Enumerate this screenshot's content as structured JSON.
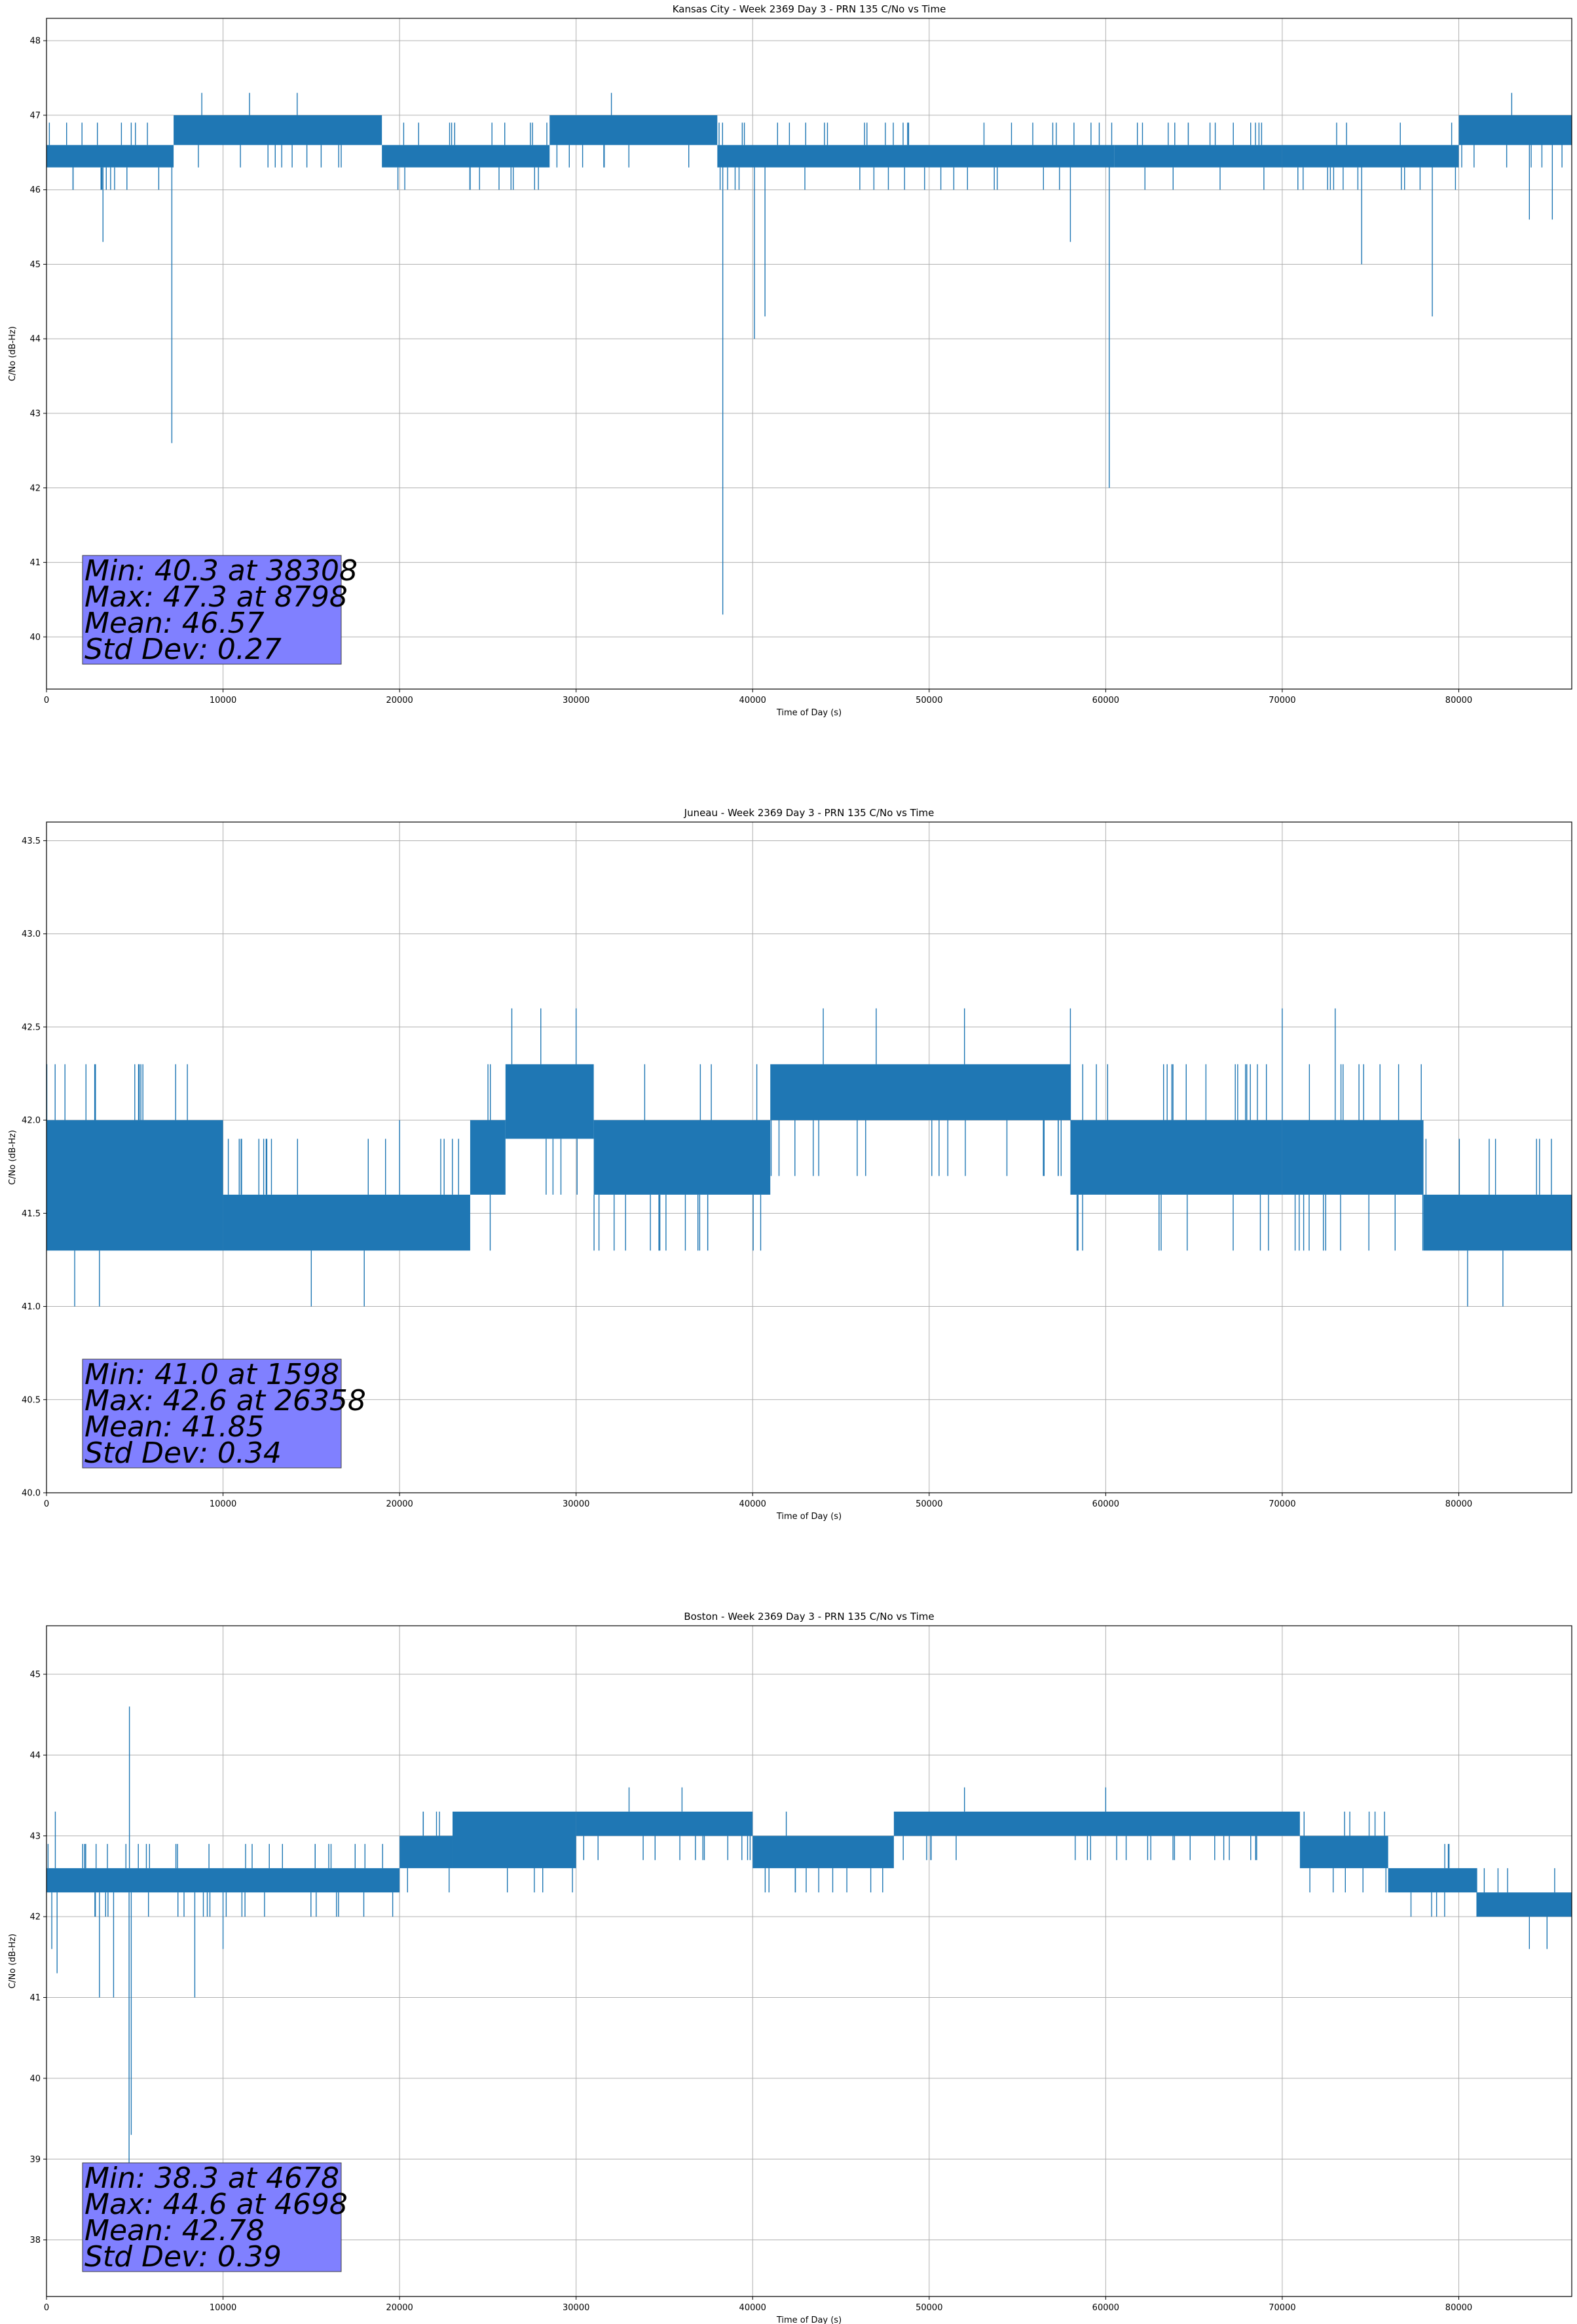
{
  "chart_data": [
    {
      "type": "line",
      "title": "Kansas City - Week 2369 Day 3 - PRN 135 C/No vs Time",
      "xlabel": "Time of Day (s)",
      "ylabel": "C/No (dB-Hz)",
      "xlim": [
        0,
        86400
      ],
      "ylim": [
        39.3,
        48.3
      ],
      "xticks": [
        0,
        10000,
        20000,
        30000,
        40000,
        50000,
        60000,
        70000,
        80000
      ],
      "yticks": [
        40,
        41,
        42,
        43,
        44,
        45,
        46,
        47,
        48
      ],
      "grid": true,
      "stats": [
        "Min: 40.3 at 38308",
        "Max: 47.3 at 8798",
        "Mean: 46.57",
        "Std Dev: 0.27"
      ],
      "bands": [
        {
          "x0": 0,
          "x1": 7200,
          "low": 46.3,
          "high": 46.6
        },
        {
          "x0": 7200,
          "x1": 19000,
          "low": 46.6,
          "high": 47.0
        },
        {
          "x0": 19000,
          "x1": 28500,
          "low": 46.3,
          "high": 46.6
        },
        {
          "x0": 28500,
          "x1": 38000,
          "low": 46.6,
          "high": 47.0
        },
        {
          "x0": 38000,
          "x1": 60500,
          "low": 46.3,
          "high": 46.6
        },
        {
          "x0": 60500,
          "x1": 70000,
          "low": 46.3,
          "high": 46.6
        },
        {
          "x0": 70000,
          "x1": 80000,
          "low": 46.3,
          "high": 46.6
        },
        {
          "x0": 80000,
          "x1": 86400,
          "low": 46.6,
          "high": 47.0
        }
      ],
      "spikes": [
        {
          "x": 1500,
          "y": 46.0
        },
        {
          "x": 3200,
          "y": 45.3
        },
        {
          "x": 7100,
          "y": 42.6
        },
        {
          "x": 8798,
          "y": 47.3
        },
        {
          "x": 11500,
          "y": 47.3
        },
        {
          "x": 14200,
          "y": 47.3
        },
        {
          "x": 24000,
          "y": 46.0
        },
        {
          "x": 32000,
          "y": 47.3
        },
        {
          "x": 38308,
          "y": 40.3
        },
        {
          "x": 40100,
          "y": 44.0
        },
        {
          "x": 40700,
          "y": 44.3
        },
        {
          "x": 58000,
          "y": 45.3
        },
        {
          "x": 60200,
          "y": 42.0
        },
        {
          "x": 74500,
          "y": 45.0
        },
        {
          "x": 78500,
          "y": 44.3
        },
        {
          "x": 83000,
          "y": 47.3
        },
        {
          "x": 84000,
          "y": 45.6
        },
        {
          "x": 85300,
          "y": 45.6
        }
      ],
      "flicker": {
        "lo": 46.0,
        "hi": 47.0
      }
    },
    {
      "type": "line",
      "title": "Juneau - Week 2369 Day 3 - PRN 135 C/No vs Time",
      "xlabel": "Time of Day (s)",
      "ylabel": "C/No (dB-Hz)",
      "xlim": [
        0,
        86400
      ],
      "ylim": [
        40.0,
        43.6
      ],
      "xticks": [
        0,
        10000,
        20000,
        30000,
        40000,
        50000,
        60000,
        70000,
        80000
      ],
      "yticks": [
        40.0,
        40.5,
        41.0,
        41.5,
        42.0,
        42.5,
        43.0,
        43.5
      ],
      "grid": true,
      "stats": [
        "Min: 41.0 at 1598",
        "Max: 42.6 at 26358",
        "Mean: 41.85",
        "Std Dev: 0.34"
      ],
      "bands": [
        {
          "x0": 0,
          "x1": 10000,
          "low": 41.3,
          "high": 42.0
        },
        {
          "x0": 10000,
          "x1": 24000,
          "low": 41.3,
          "high": 41.6
        },
        {
          "x0": 24000,
          "x1": 26000,
          "low": 41.6,
          "high": 42.0
        },
        {
          "x0": 26000,
          "x1": 31000,
          "low": 41.9,
          "high": 42.3
        },
        {
          "x0": 31000,
          "x1": 41000,
          "low": 41.6,
          "high": 42.0
        },
        {
          "x0": 41000,
          "x1": 58000,
          "low": 42.0,
          "high": 42.3
        },
        {
          "x0": 58000,
          "x1": 70000,
          "low": 41.6,
          "high": 42.0
        },
        {
          "x0": 70000,
          "x1": 78000,
          "low": 41.6,
          "high": 42.0
        },
        {
          "x0": 78000,
          "x1": 86400,
          "low": 41.3,
          "high": 41.6
        }
      ],
      "spikes": [
        {
          "x": 1598,
          "y": 41.0
        },
        {
          "x": 3000,
          "y": 41.0
        },
        {
          "x": 5000,
          "y": 42.3
        },
        {
          "x": 15000,
          "y": 41.0
        },
        {
          "x": 18000,
          "y": 41.0
        },
        {
          "x": 20000,
          "y": 42.0
        },
        {
          "x": 26358,
          "y": 42.6
        },
        {
          "x": 28000,
          "y": 42.6
        },
        {
          "x": 30000,
          "y": 42.6
        },
        {
          "x": 37000,
          "y": 41.3
        },
        {
          "x": 44000,
          "y": 42.6
        },
        {
          "x": 47000,
          "y": 42.6
        },
        {
          "x": 52000,
          "y": 42.6
        },
        {
          "x": 58000,
          "y": 42.6
        },
        {
          "x": 70000,
          "y": 42.6
        },
        {
          "x": 73000,
          "y": 42.6
        },
        {
          "x": 80500,
          "y": 41.0
        },
        {
          "x": 82500,
          "y": 41.0
        }
      ],
      "flicker": {
        "lo": 41.3,
        "hi": 42.3
      }
    },
    {
      "type": "line",
      "title": "Boston - Week 2369 Day 3 - PRN 135 C/No vs Time",
      "xlabel": "Time of Day (s)",
      "ylabel": "C/No (dB-Hz)",
      "xlim": [
        0,
        86400
      ],
      "ylim": [
        37.3,
        45.6
      ],
      "xticks": [
        0,
        10000,
        20000,
        30000,
        40000,
        50000,
        60000,
        70000,
        80000
      ],
      "yticks": [
        38,
        39,
        40,
        41,
        42,
        43,
        44,
        45
      ],
      "grid": true,
      "stats": [
        "Min: 38.3 at 4678",
        "Max: 44.6 at 4698",
        "Mean: 42.78",
        "Std Dev: 0.39"
      ],
      "bands": [
        {
          "x0": 0,
          "x1": 20000,
          "low": 42.3,
          "high": 42.6
        },
        {
          "x0": 20000,
          "x1": 23000,
          "low": 42.6,
          "high": 43.0
        },
        {
          "x0": 23000,
          "x1": 30000,
          "low": 42.6,
          "high": 43.3
        },
        {
          "x0": 30000,
          "x1": 40000,
          "low": 43.0,
          "high": 43.3
        },
        {
          "x0": 40000,
          "x1": 48000,
          "low": 42.6,
          "high": 43.0
        },
        {
          "x0": 48000,
          "x1": 71000,
          "low": 43.0,
          "high": 43.3
        },
        {
          "x0": 71000,
          "x1": 76000,
          "low": 42.6,
          "high": 43.0
        },
        {
          "x0": 76000,
          "x1": 81000,
          "low": 42.3,
          "high": 42.6
        },
        {
          "x0": 81000,
          "x1": 86400,
          "low": 42.0,
          "high": 42.3
        }
      ],
      "spikes": [
        {
          "x": 300,
          "y": 41.6
        },
        {
          "x": 500,
          "y": 43.3
        },
        {
          "x": 600,
          "y": 41.3
        },
        {
          "x": 3000,
          "y": 41.0
        },
        {
          "x": 3800,
          "y": 41.0
        },
        {
          "x": 4678,
          "y": 38.3
        },
        {
          "x": 4698,
          "y": 44.6
        },
        {
          "x": 4800,
          "y": 39.3
        },
        {
          "x": 8400,
          "y": 41.0
        },
        {
          "x": 10000,
          "y": 41.6
        },
        {
          "x": 33000,
          "y": 43.6
        },
        {
          "x": 36000,
          "y": 43.6
        },
        {
          "x": 52000,
          "y": 43.6
        },
        {
          "x": 60000,
          "y": 43.6
        },
        {
          "x": 84000,
          "y": 41.6
        },
        {
          "x": 85000,
          "y": 41.6
        }
      ],
      "flicker": {
        "lo": 42.0,
        "hi": 43.3
      }
    }
  ]
}
